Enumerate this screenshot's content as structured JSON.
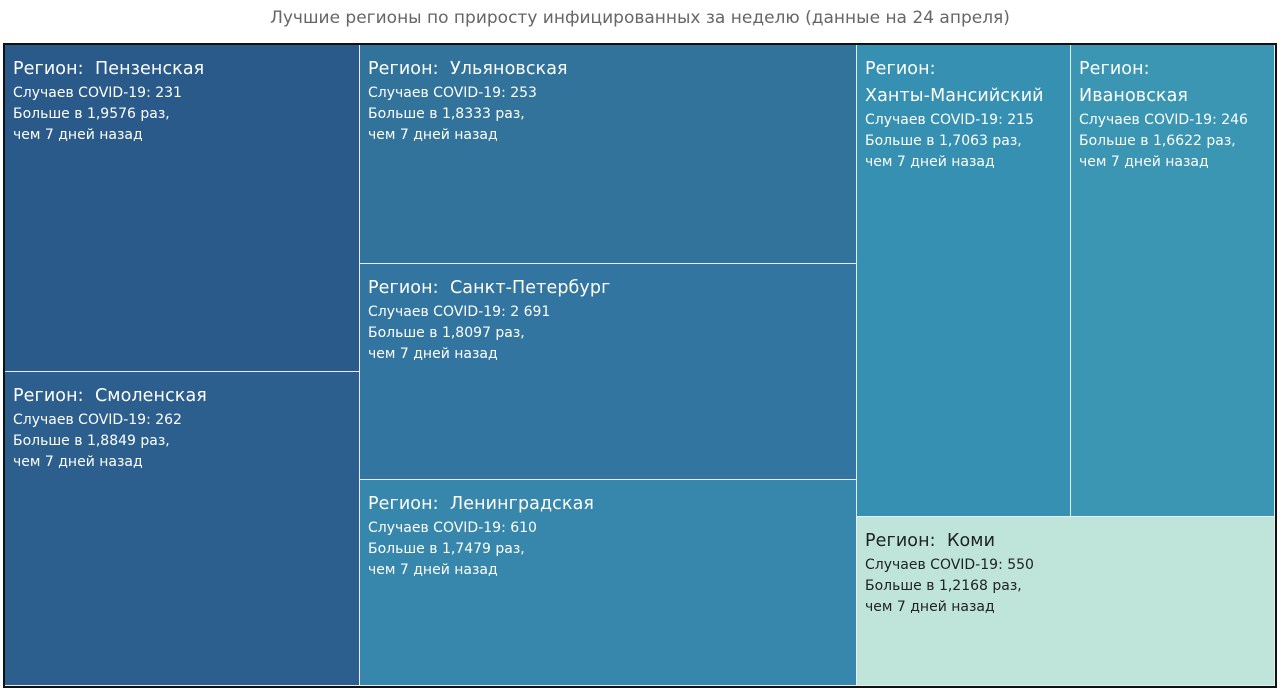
{
  "chart_data": {
    "type": "treemap",
    "title": "Лучшие регионы по приросту инфицированных за неделю (данные на 24 апреля)",
    "name_label": "Регион:",
    "cases_label": "Случаев COVID-19:",
    "ratio_label": "Больше в",
    "ratio_suffix": "раз,",
    "period_label": "чем 7 дней назад",
    "items": [
      {
        "region": "Пензенская",
        "cases": "231",
        "ratio": "1,9576",
        "color": "#2a5a89",
        "text_color": "#ffffff"
      },
      {
        "region": "Смоленская",
        "cases": "262",
        "ratio": "1,8849",
        "color": "#2c5f8e",
        "text_color": "#ffffff"
      },
      {
        "region": "Ульяновская",
        "cases": "253",
        "ratio": "1,8333",
        "color": "#31739b",
        "text_color": "#ffffff"
      },
      {
        "region": "Санкт-Петербург",
        "cases": "2 691",
        "ratio": "1,8097",
        "color": "#3175a0",
        "text_color": "#ffffff"
      },
      {
        "region": "Ленинградская",
        "cases": "610",
        "ratio": "1,7479",
        "color": "#3687ab",
        "text_color": "#ffffff"
      },
      {
        "region": "Ханты-Мансийский",
        "cases": "215",
        "ratio": "1,7063",
        "color": "#3590b2",
        "text_color": "#ffffff"
      },
      {
        "region": "Ивановская",
        "cases": "246",
        "ratio": "1,6622",
        "color": "#3a96b2",
        "text_color": "#ffffff"
      },
      {
        "region": "Коми",
        "cases": "550",
        "ratio": "1,2168",
        "color": "#bfe4da",
        "text_color": "#222222"
      }
    ]
  }
}
